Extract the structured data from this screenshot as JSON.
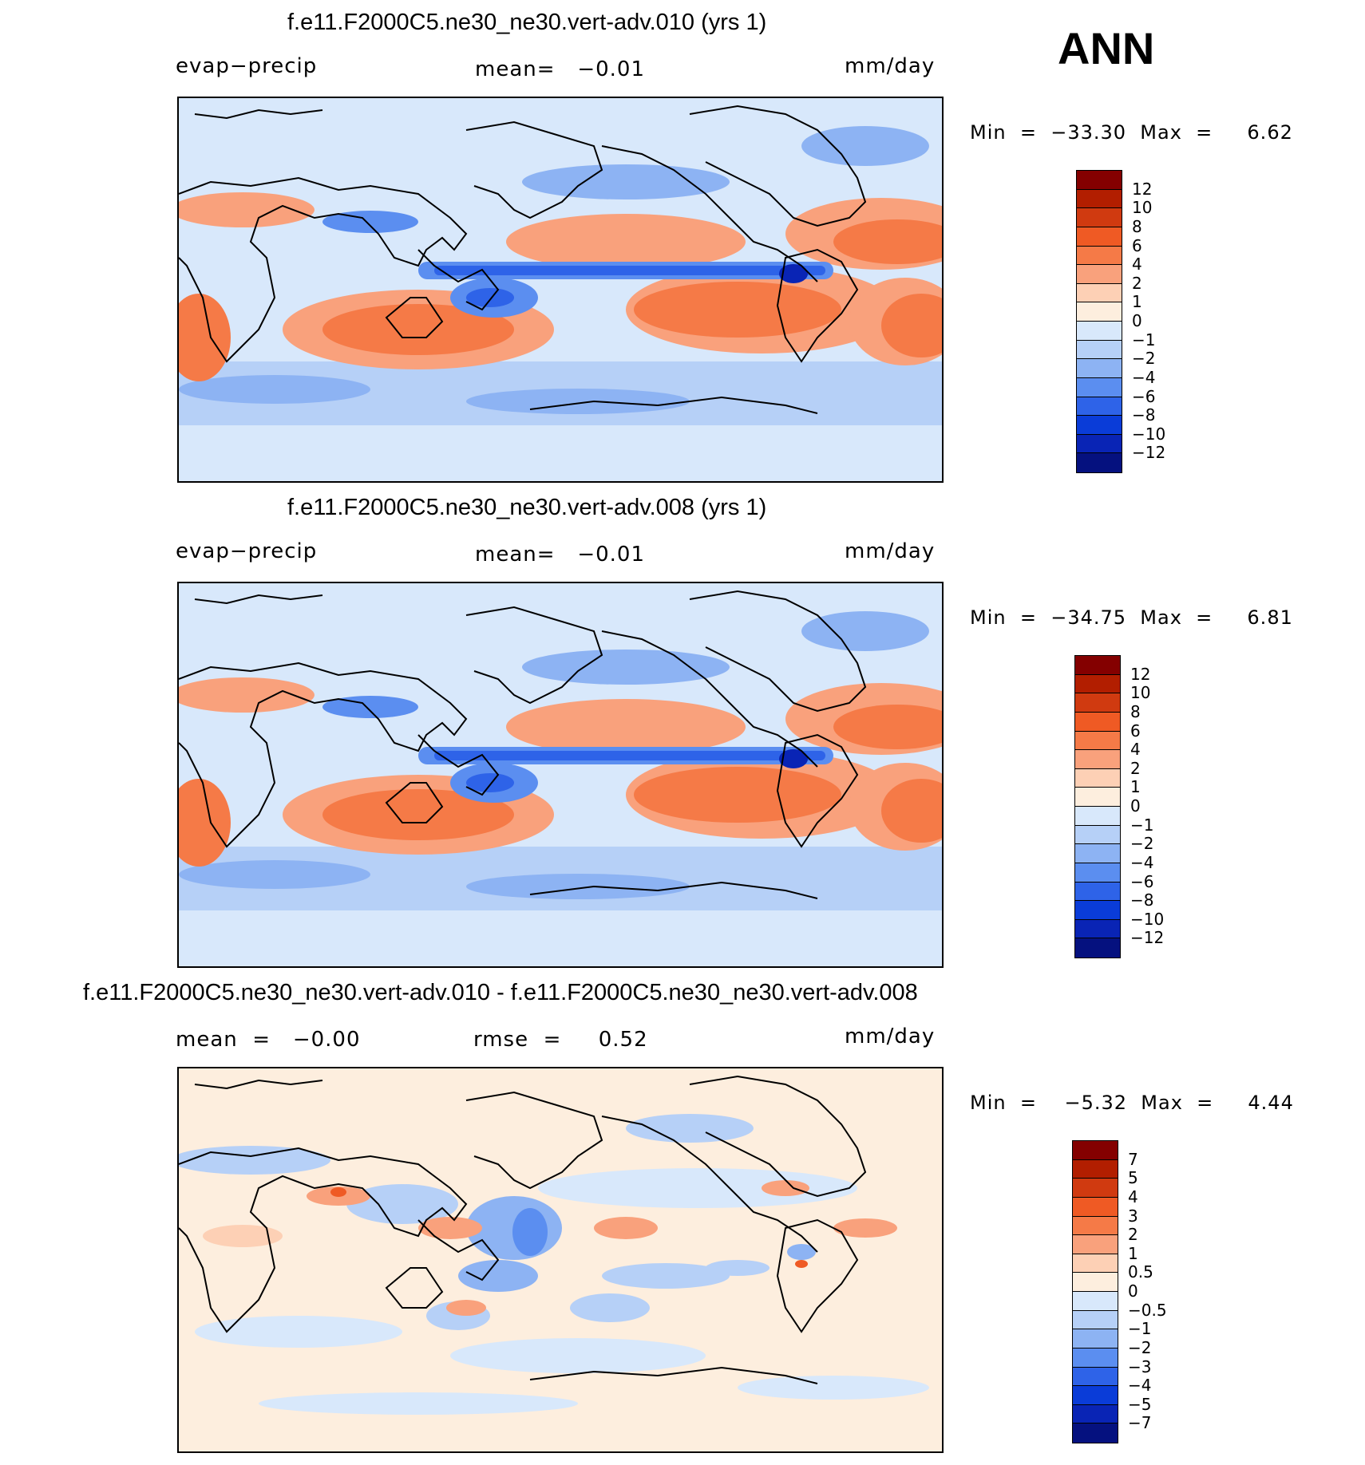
{
  "season": "ANN",
  "panels": [
    {
      "title": "f.e11.F2000C5.ne30_ne30.vert-adv.010 (yrs 1)",
      "left_label": "evap−precip",
      "center_label": "mean=   −0.01",
      "right_label": "mm/day",
      "minmax": "Min  =  −33.30  Max  =     6.62",
      "colorbar": {
        "labels": [
          "12",
          "10",
          "8",
          "6",
          "4",
          "2",
          "1",
          "0",
          "−1",
          "−2",
          "−4",
          "−6",
          "−8",
          "−10",
          "−12"
        ],
        "colors": [
          "#840000",
          "#b21e00",
          "#d03a10",
          "#ef5a24",
          "#f57a47",
          "#f9a17c",
          "#fdd0b5",
          "#fdeede",
          "#d8e8fb",
          "#b6d0f7",
          "#8db3f3",
          "#5b8ef0",
          "#2e63e8",
          "#0a3cd8",
          "#0924b5",
          "#05117f"
        ]
      }
    },
    {
      "title": "f.e11.F2000C5.ne30_ne30.vert-adv.008 (yrs 1)",
      "left_label": "evap−precip",
      "center_label": "mean=   −0.01",
      "right_label": "mm/day",
      "minmax": "Min  =  −34.75  Max  =     6.81",
      "colorbar": {
        "labels": [
          "12",
          "10",
          "8",
          "6",
          "4",
          "2",
          "1",
          "0",
          "−1",
          "−2",
          "−4",
          "−6",
          "−8",
          "−10",
          "−12"
        ],
        "colors": [
          "#840000",
          "#b21e00",
          "#d03a10",
          "#ef5a24",
          "#f57a47",
          "#f9a17c",
          "#fdd0b5",
          "#fdeede",
          "#d8e8fb",
          "#b6d0f7",
          "#8db3f3",
          "#5b8ef0",
          "#2e63e8",
          "#0a3cd8",
          "#0924b5",
          "#05117f"
        ]
      }
    },
    {
      "title": "f.e11.F2000C5.ne30_ne30.vert-adv.010 - f.e11.F2000C5.ne30_ne30.vert-adv.008",
      "left_label": "mean  =   −0.00",
      "center_label": "rmse  =     0.52",
      "right_label": "mm/day",
      "minmax": "Min  =    −5.32  Max  =     4.44",
      "colorbar": {
        "labels": [
          "7",
          "5",
          "4",
          "3",
          "2",
          "1",
          "0.5",
          "0",
          "−0.5",
          "−1",
          "−2",
          "−3",
          "−4",
          "−5",
          "−7"
        ],
        "colors": [
          "#840000",
          "#b21e00",
          "#d03a10",
          "#ef5a24",
          "#f57a47",
          "#f9a17c",
          "#fdd0b5",
          "#fdeede",
          "#d8e8fb",
          "#b6d0f7",
          "#8db3f3",
          "#5b8ef0",
          "#2e63e8",
          "#0a3cd8",
          "#0924b5",
          "#05117f"
        ]
      }
    }
  ]
}
